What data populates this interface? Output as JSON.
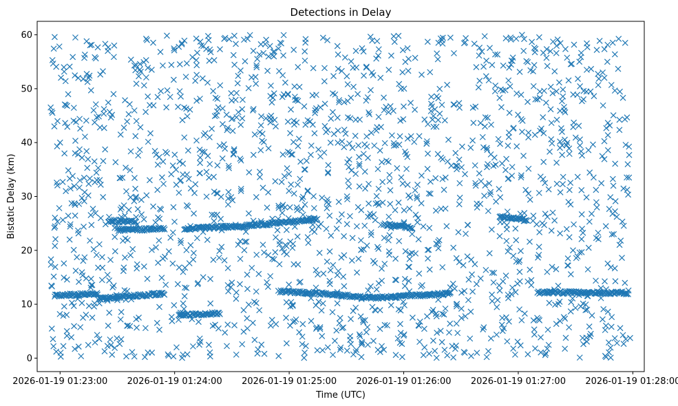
{
  "chart_data": {
    "type": "scatter",
    "title": "Detections in Delay",
    "xlabel": "Time (UTC)",
    "ylabel": "Bistatic Delay (km)",
    "marker": "x",
    "marker_color": "#1f77b4",
    "grid": false,
    "legend": "none",
    "x_axis_type": "datetime",
    "xlim": [
      "2026-01-19 01:22:48",
      "2026-01-19 01:28:06"
    ],
    "ylim": [
      -2.5,
      62.5
    ],
    "x_ticks": [
      "2026-01-19 01:23:00",
      "2026-01-19 01:24:00",
      "2026-01-19 01:25:00",
      "2026-01-19 01:26:00",
      "2026-01-19 01:27:00",
      "2026-01-19 01:28:00"
    ],
    "y_ticks": [
      0,
      10,
      20,
      30,
      40,
      50,
      60
    ],
    "data_range": {
      "x": [
        "2026-01-19 01:22:55",
        "2026-01-19 01:27:59"
      ],
      "y": [
        0,
        60
      ]
    },
    "approx_point_count": 2600,
    "tracks": [
      {
        "x": [
          "2026-01-19 01:22:57",
          "2026-01-19 01:23:20"
        ],
        "y": [
          11.6,
          12.0
        ]
      },
      {
        "x": [
          "2026-01-19 01:23:20",
          "2026-01-19 01:23:55"
        ],
        "y": [
          11.0,
          12.0
        ]
      },
      {
        "x": [
          "2026-01-19 01:24:02",
          "2026-01-19 01:24:24"
        ],
        "y": [
          8.0,
          8.3
        ]
      },
      {
        "x": [
          "2026-01-19 01:24:55",
          "2026-01-19 01:25:20"
        ],
        "y": [
          12.4,
          11.9
        ]
      },
      {
        "x": [
          "2026-01-19 01:25:20",
          "2026-01-19 01:25:45"
        ],
        "y": [
          11.9,
          11.2
        ]
      },
      {
        "x": [
          "2026-01-19 01:25:45",
          "2026-01-19 01:26:25"
        ],
        "y": [
          11.2,
          12.0
        ]
      },
      {
        "x": [
          "2026-01-19 01:27:10",
          "2026-01-19 01:27:58"
        ],
        "y": [
          12.2,
          12.1
        ]
      },
      {
        "x": [
          "2026-01-19 01:23:25",
          "2026-01-19 01:23:40"
        ],
        "y": [
          25.5,
          25.3
        ]
      },
      {
        "x": [
          "2026-01-19 01:23:30",
          "2026-01-19 01:23:55"
        ],
        "y": [
          23.8,
          24.0
        ]
      },
      {
        "x": [
          "2026-01-19 01:24:05",
          "2026-01-19 01:24:40"
        ],
        "y": [
          24.0,
          24.6
        ]
      },
      {
        "x": [
          "2026-01-19 01:24:40",
          "2026-01-19 01:25:15"
        ],
        "y": [
          24.6,
          25.8
        ]
      },
      {
        "x": [
          "2026-01-19 01:25:50",
          "2026-01-19 01:26:05"
        ],
        "y": [
          24.8,
          24.2
        ]
      },
      {
        "x": [
          "2026-01-19 01:26:50",
          "2026-01-19 01:27:05"
        ],
        "y": [
          26.3,
          25.5
        ]
      }
    ],
    "series": [
      {
        "color": "#1f77b4",
        "x": [
          "2026-01-19 01:22:56",
          "2026-01-19 01:22:57",
          "2026-01-19 01:22:57",
          "2026-01-19 01:22:58",
          "2026-01-19 01:22:56",
          "2026-01-19 01:23:00",
          "2026-01-19 01:23:03",
          "2026-01-19 01:23:05",
          "2026-01-19 01:23:08",
          "2026-01-19 01:23:12",
          "2026-01-19 01:23:15",
          "2026-01-19 01:23:18",
          "2026-01-19 01:23:22",
          "2026-01-19 01:23:25",
          "2026-01-19 01:23:28",
          "2026-01-19 01:23:32",
          "2026-01-19 01:23:36",
          "2026-01-19 01:23:40",
          "2026-01-19 01:23:44",
          "2026-01-19 01:23:48",
          "2026-01-19 01:23:52",
          "2026-01-19 01:23:56",
          "2026-01-19 01:24:01",
          "2026-01-19 01:24:05",
          "2026-01-19 01:24:10",
          "2026-01-19 01:24:14",
          "2026-01-19 01:24:18",
          "2026-01-19 01:24:23",
          "2026-01-19 01:24:28",
          "2026-01-19 01:24:33",
          "2026-01-19 01:24:38",
          "2026-01-19 01:24:42",
          "2026-01-19 01:24:47",
          "2026-01-19 01:24:52",
          "2026-01-19 01:24:58",
          "2026-01-19 01:25:03",
          "2026-01-19 01:25:08",
          "2026-01-19 01:25:14",
          "2026-01-19 01:25:20",
          "2026-01-19 01:25:26",
          "2026-01-19 01:25:32",
          "2026-01-19 01:25:38",
          "2026-01-19 01:25:44",
          "2026-01-19 01:25:50",
          "2026-01-19 01:25:56",
          "2026-01-19 01:26:02",
          "2026-01-19 01:26:08",
          "2026-01-19 01:26:14",
          "2026-01-19 01:26:20",
          "2026-01-19 01:26:26",
          "2026-01-19 01:26:32",
          "2026-01-19 01:26:38",
          "2026-01-19 01:26:44",
          "2026-01-19 01:26:50",
          "2026-01-19 01:26:56",
          "2026-01-19 01:27:02",
          "2026-01-19 01:27:08",
          "2026-01-19 01:27:14",
          "2026-01-19 01:27:20",
          "2026-01-19 01:27:26",
          "2026-01-19 01:27:32",
          "2026-01-19 01:27:38",
          "2026-01-19 01:27:44",
          "2026-01-19 01:27:50",
          "2026-01-19 01:27:56"
        ],
        "y": [
          55.3,
          43.0,
          24.2,
          1.2,
          45.5,
          40.0,
          31.0,
          22.0,
          59.5,
          7.5,
          52.0,
          36.5,
          14.5,
          57.0,
          49.0,
          3.5,
          27.5,
          44.0,
          17.0,
          53.5,
          9.5,
          38.0,
          2.0,
          46.5,
          19.5,
          58.0,
          33.5,
          5.5,
          28.5,
          51.0,
          15.5,
          41.5,
          0.8,
          56.0,
          21.0,
          48.5,
          35.0,
          9.8,
          59.0,
          29.0,
          44.5,
          3.0,
          52.5,
          17.5,
          39.5,
          57.5,
          6.0,
          30.5,
          47.0,
          20.5,
          1.0,
          54.0,
          36.0,
          13.5,
          59.5,
          42.0,
          7.0,
          32.5,
          49.5,
          18.5,
          55.0,
          4.5,
          37.5,
          23.0,
          58.5
        ]
      }
    ]
  }
}
